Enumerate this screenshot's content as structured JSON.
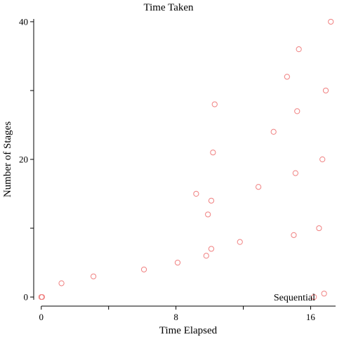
{
  "chart_data": {
    "type": "scatter",
    "title": "Time Taken",
    "xlabel": "Time Elapsed",
    "ylabel": "Number of Stages",
    "xlim": [
      -0.2,
      17.4
    ],
    "ylim": [
      -0.4,
      40.4
    ],
    "xticks": [
      0,
      4,
      8,
      12,
      16
    ],
    "xtick_labels": [
      "0",
      "",
      "8",
      "",
      "16"
    ],
    "yticks": [
      0,
      10,
      20,
      30,
      40
    ],
    "ytick_labels": [
      "0",
      "",
      "20",
      "",
      "40"
    ],
    "grid": false,
    "legend_position": "bottom-right",
    "series": [
      {
        "name": "Sequential",
        "color": "#f08080",
        "marker": "circle-open",
        "points": [
          {
            "x": 0.0,
            "y": 0
          },
          {
            "x": 0.05,
            "y": 0
          },
          {
            "x": 1.2,
            "y": 2
          },
          {
            "x": 3.1,
            "y": 3
          },
          {
            "x": 6.1,
            "y": 4
          },
          {
            "x": 8.1,
            "y": 5
          },
          {
            "x": 9.8,
            "y": 6
          },
          {
            "x": 10.1,
            "y": 7
          },
          {
            "x": 11.8,
            "y": 8
          },
          {
            "x": 15.0,
            "y": 9
          },
          {
            "x": 16.5,
            "y": 10
          },
          {
            "x": 9.9,
            "y": 12
          },
          {
            "x": 10.1,
            "y": 14
          },
          {
            "x": 9.2,
            "y": 15
          },
          {
            "x": 12.9,
            "y": 16
          },
          {
            "x": 15.1,
            "y": 18
          },
          {
            "x": 16.7,
            "y": 20
          },
          {
            "x": 10.2,
            "y": 21
          },
          {
            "x": 13.8,
            "y": 24
          },
          {
            "x": 15.2,
            "y": 27
          },
          {
            "x": 10.3,
            "y": 28
          },
          {
            "x": 16.9,
            "y": 30
          },
          {
            "x": 14.6,
            "y": 32
          },
          {
            "x": 15.3,
            "y": 36
          },
          {
            "x": 17.2,
            "y": 40
          },
          {
            "x": 16.2,
            "y": 0
          },
          {
            "x": 16.8,
            "y": 0.5
          }
        ]
      }
    ]
  }
}
